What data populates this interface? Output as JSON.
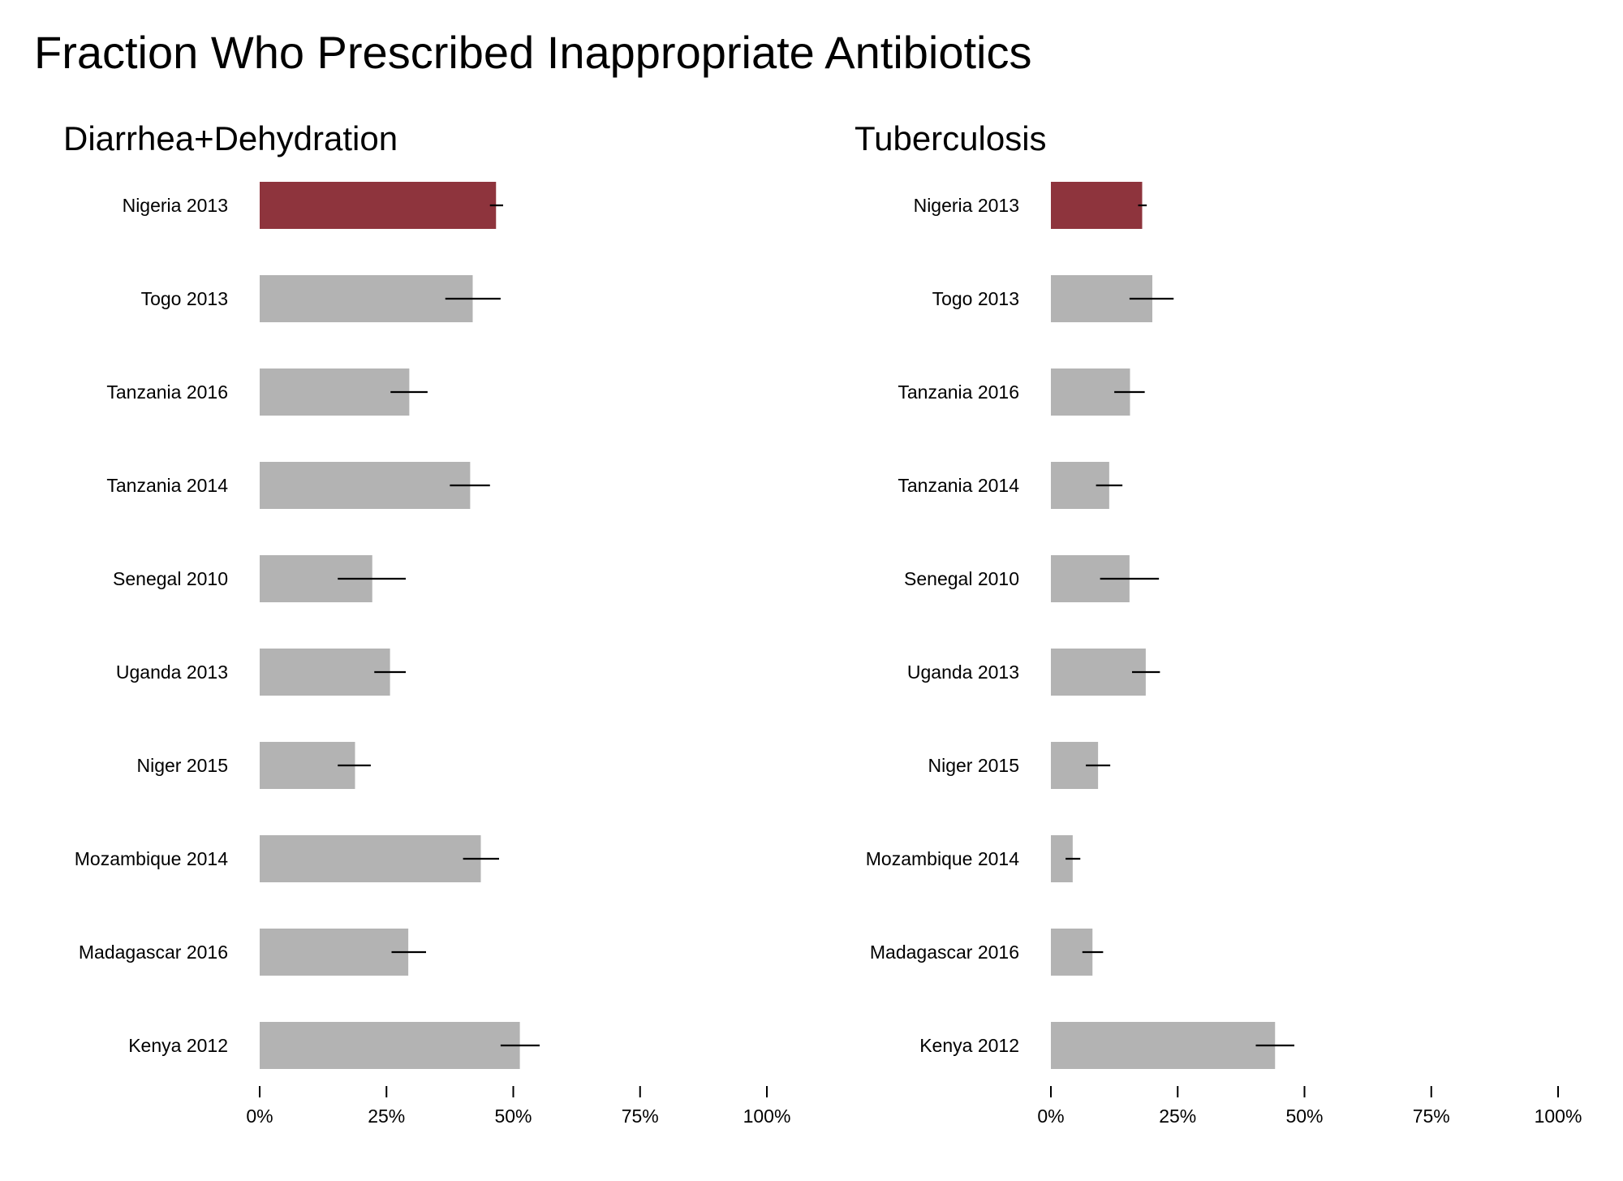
{
  "title": "Fraction Who Prescribed Inappropriate Antibiotics",
  "colors": {
    "highlight": "#8e343d",
    "bar": "#b3b3b3",
    "error_bar": "#000000"
  },
  "chart_data": [
    {
      "type": "bar",
      "orientation": "horizontal",
      "title": "Diarrhea+Dehydration",
      "categories": [
        "Nigeria 2013",
        "Togo 2013",
        "Tanzania 2016",
        "Tanzania 2014",
        "Senegal 2010",
        "Uganda 2013",
        "Niger 2015",
        "Mozambique 2014",
        "Madagascar 2016",
        "Kenya 2012"
      ],
      "values": [
        0.466,
        0.42,
        0.295,
        0.415,
        0.222,
        0.257,
        0.188,
        0.436,
        0.293,
        0.513
      ],
      "error_low": [
        0.454,
        0.366,
        0.258,
        0.375,
        0.154,
        0.226,
        0.154,
        0.401,
        0.26,
        0.475
      ],
      "error_high": [
        0.48,
        0.475,
        0.331,
        0.454,
        0.288,
        0.288,
        0.219,
        0.472,
        0.328,
        0.552
      ],
      "highlight": "Nigeria 2013",
      "xlim": [
        0,
        1
      ],
      "xticks": [
        "0%",
        "25%",
        "50%",
        "75%",
        "100%"
      ],
      "xlabel": "",
      "ylabel": "",
      "grid": false
    },
    {
      "type": "bar",
      "orientation": "horizontal",
      "title": "Tuberculosis",
      "categories": [
        "Nigeria 2013",
        "Togo 2013",
        "Tanzania 2016",
        "Tanzania 2014",
        "Senegal 2010",
        "Uganda 2013",
        "Niger 2015",
        "Mozambique 2014",
        "Madagascar 2016",
        "Kenya 2012"
      ],
      "values": [
        0.18,
        0.2,
        0.156,
        0.115,
        0.155,
        0.187,
        0.093,
        0.043,
        0.082,
        0.442
      ],
      "error_low": [
        0.172,
        0.155,
        0.125,
        0.089,
        0.097,
        0.16,
        0.069,
        0.029,
        0.062,
        0.404
      ],
      "error_high": [
        0.189,
        0.242,
        0.185,
        0.141,
        0.213,
        0.215,
        0.117,
        0.058,
        0.103,
        0.48
      ],
      "highlight": "Nigeria 2013",
      "xlim": [
        0,
        1
      ],
      "xticks": [
        "0%",
        "25%",
        "50%",
        "75%",
        "100%"
      ],
      "xlabel": "",
      "ylabel": "",
      "grid": false
    }
  ]
}
